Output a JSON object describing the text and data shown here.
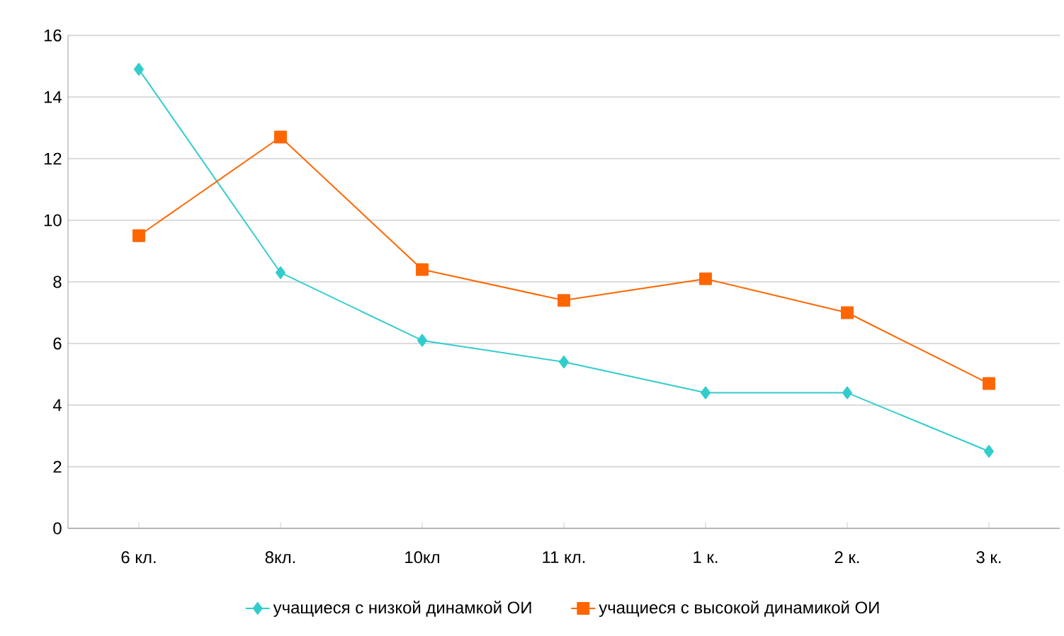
{
  "chart_data": {
    "type": "line",
    "categories": [
      "6 кл.",
      "8кл.",
      "10кл",
      "11 кл.",
      "1 к.",
      "2 к.",
      "3 к."
    ],
    "series": [
      {
        "name": "учащиеся с низкой динамкой ОИ",
        "color": "#33cccc",
        "marker": "diamond",
        "values": [
          14.9,
          8.3,
          6.1,
          5.4,
          4.4,
          4.4,
          2.5
        ]
      },
      {
        "name": "учащиеся с высокой динамикой ОИ",
        "color": "#ff6600",
        "marker": "square",
        "values": [
          9.5,
          12.7,
          8.4,
          7.4,
          8.1,
          7.0,
          4.7
        ]
      }
    ],
    "ylim": [
      0,
      16
    ],
    "yticks": [
      0,
      2,
      4,
      6,
      8,
      10,
      12,
      14,
      16
    ],
    "grid": "y",
    "legend": "bottom",
    "line_style": "solid"
  }
}
